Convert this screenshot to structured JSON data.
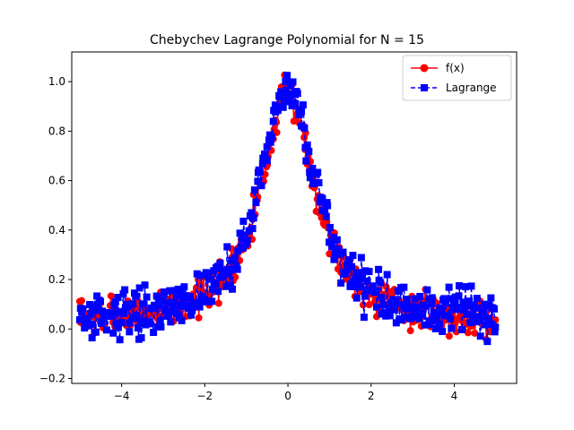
{
  "chart_data": {
    "type": "line",
    "title": "Chebychev Lagrange Polynomial for N = 15",
    "xlabel": "",
    "ylabel": "",
    "xlim": [
      -5.2,
      5.5
    ],
    "ylim": [
      -0.22,
      1.12
    ],
    "xticks": [
      -4,
      -2,
      0,
      2,
      4
    ],
    "xtick_labels": [
      "−4",
      "−2",
      "0",
      "2",
      "4"
    ],
    "yticks": [
      -0.2,
      0.0,
      0.2,
      0.4,
      0.6,
      0.8,
      1.0
    ],
    "ytick_labels": [
      "−0.2",
      "0.0",
      "0.2",
      "0.4",
      "0.6",
      "0.8",
      "1.0"
    ],
    "grid": false,
    "legend_position": "top-right",
    "series": [
      {
        "name": "f(x)",
        "color": "#ff0000",
        "linestyle": "solid",
        "marker": "circle",
        "sample_n": 400,
        "noise": 0.06,
        "seed": 7,
        "peak_x": 0.0,
        "peak_y": 0.96,
        "baseline": 0.02
      },
      {
        "name": "Lagrange",
        "color": "#0000ff",
        "linestyle": "dashed",
        "marker": "square",
        "sample_n": 400,
        "noise": 0.075,
        "seed": 13,
        "peak_x": 0.0,
        "peak_y": 0.97,
        "baseline": 0.03
      }
    ]
  }
}
